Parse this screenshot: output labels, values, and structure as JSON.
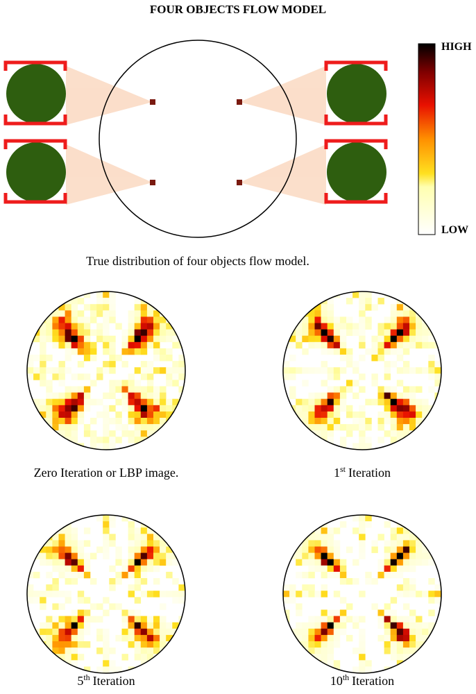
{
  "title": "FOUR OBJECTS FLOW MODEL",
  "colorbar": {
    "high": "HIGH",
    "low": "LOW"
  },
  "caption": "True distribution of four objects flow model.",
  "panels": [
    {
      "caption": "Zero Iteration or LBP image."
    },
    {
      "number": "1",
      "sup": "st",
      "caption": "Iteration"
    },
    {
      "number": "5",
      "sup": "th",
      "caption": "Iteration"
    },
    {
      "number": "10",
      "sup": "th",
      "caption": "Iteration"
    }
  ]
}
